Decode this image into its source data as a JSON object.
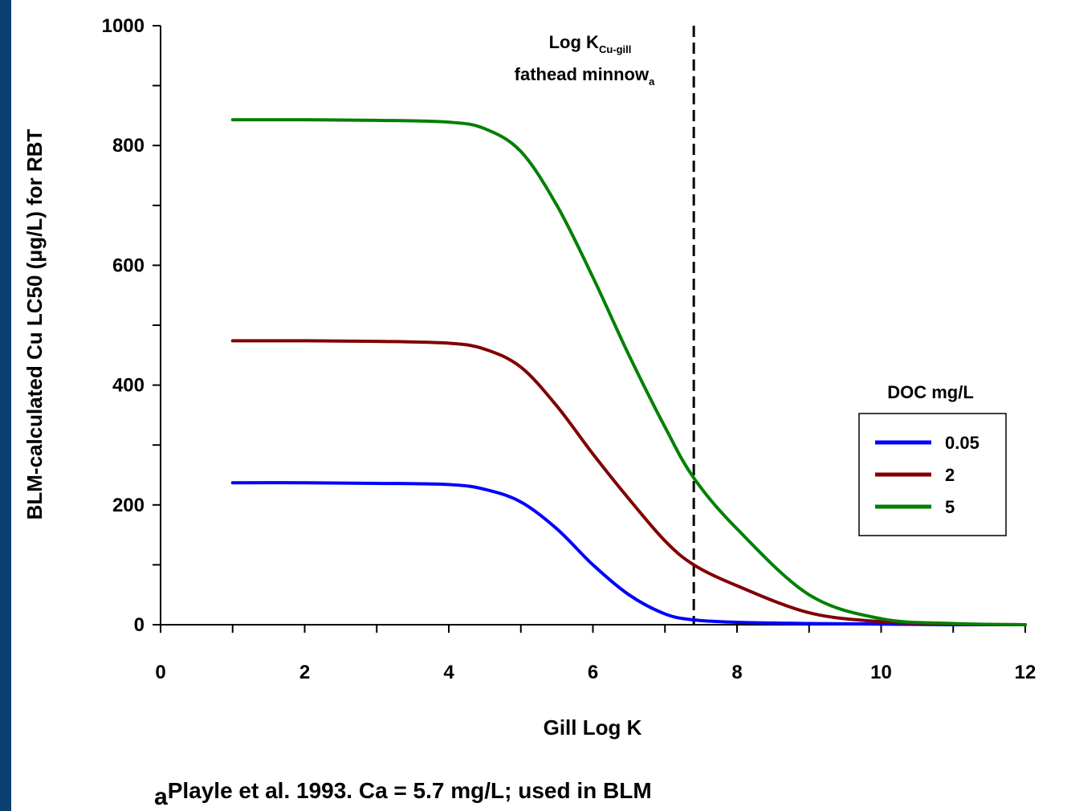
{
  "chart_data": {
    "type": "line",
    "xlabel": "Gill Log K",
    "ylabel": "BLM-calculated Cu LC50 (μg/L) for RBT",
    "xlim": [
      0,
      12
    ],
    "ylim": [
      0,
      1000
    ],
    "xticks": [
      "0",
      "2",
      "4",
      "6",
      "8",
      "10",
      "12"
    ],
    "yticks": [
      "0",
      "200",
      "400",
      "600",
      "800",
      "1000"
    ],
    "legend_title": "DOC mg/L",
    "legend_position": "right",
    "colors": {
      "0.05": "#0000ff",
      "2": "#800000",
      "5": "#008000"
    },
    "series": [
      {
        "name": "0.05",
        "color": "#0000ff",
        "x": [
          1,
          2,
          3,
          4,
          4.5,
          5,
          5.5,
          6,
          6.5,
          7,
          7.4,
          8,
          9,
          10,
          11,
          12
        ],
        "y": [
          237,
          237,
          236,
          234,
          226,
          205,
          160,
          100,
          50,
          18,
          8,
          4,
          2,
          1,
          0,
          0
        ]
      },
      {
        "name": "2",
        "color": "#800000",
        "x": [
          1,
          2,
          3,
          4,
          4.5,
          5,
          5.5,
          6,
          6.5,
          7,
          7.4,
          8,
          9,
          10,
          11,
          12
        ],
        "y": [
          474,
          474,
          473,
          470,
          460,
          430,
          365,
          285,
          210,
          140,
          100,
          65,
          20,
          5,
          1,
          0
        ]
      },
      {
        "name": "5",
        "color": "#008000",
        "x": [
          1,
          2,
          3,
          4,
          4.5,
          5,
          5.5,
          6,
          6.5,
          7,
          7.4,
          8,
          9,
          10,
          11,
          12
        ],
        "y": [
          843,
          843,
          842,
          839,
          828,
          790,
          700,
          580,
          450,
          330,
          245,
          160,
          50,
          10,
          2,
          0
        ]
      }
    ],
    "annotation": {
      "x": 7.4,
      "line1_main": "Log K",
      "line1_sub": "Cu-gill",
      "line2_main": "fathead minnow",
      "line2_sub": "a"
    }
  },
  "footnote": {
    "prefix": "a",
    "text": "Playle et al. 1993. Ca = 5.7 mg/L; used in BLM"
  }
}
